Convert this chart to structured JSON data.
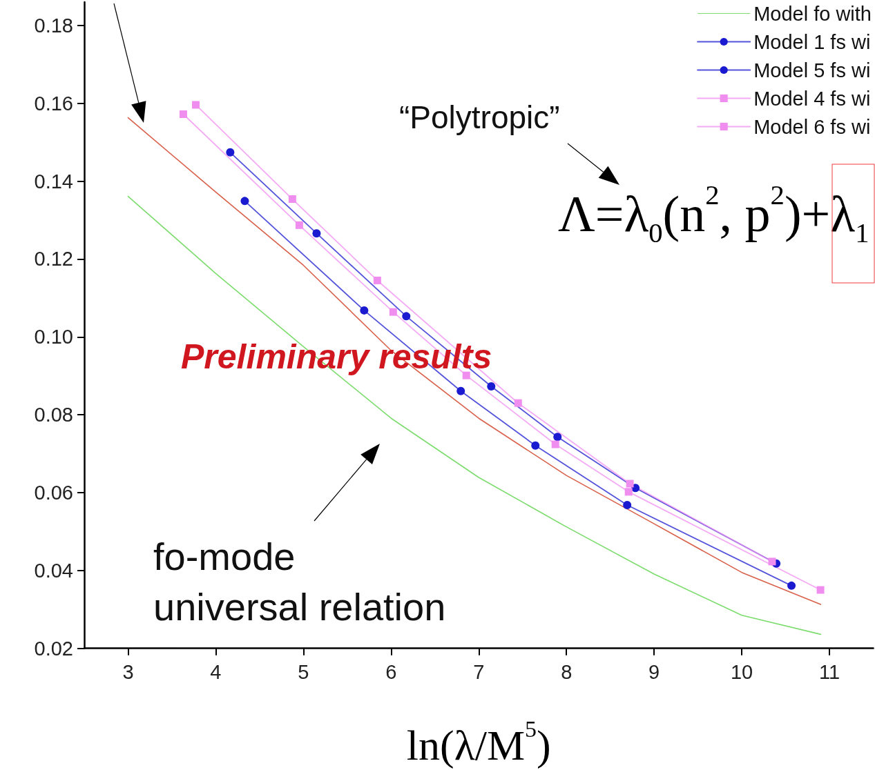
{
  "chart_data": {
    "type": "line",
    "xlabel": "ln(λ/M$^{5}$)",
    "xlim": [
      2.5,
      11.5
    ],
    "xticks": [
      3,
      4,
      5,
      6,
      7,
      8,
      9,
      10,
      11
    ],
    "ylim": [
      0.02,
      0.186
    ],
    "yticks": [
      {
        "value": 0.02,
        "label": "0.02"
      },
      {
        "value": 0.04,
        "label": "0.04"
      },
      {
        "value": 0.06,
        "label": "0.06"
      },
      {
        "value": 0.08,
        "label": "0.08"
      },
      {
        "value": 0.1,
        "label": "0.10"
      },
      {
        "value": 0.12,
        "label": "0.12"
      },
      {
        "value": 0.14,
        "label": "0.14"
      },
      {
        "value": 0.16,
        "label": "0.16"
      },
      {
        "value": 0.18,
        "label": "0.18"
      }
    ],
    "grid": false,
    "legend": "top right",
    "series": [
      {
        "color": "#d9604a",
        "marker": "none",
        "x": [
          3,
          4,
          5,
          6,
          7,
          8,
          9,
          10,
          10.9
        ],
        "values": [
          0.1563,
          0.1372,
          0.1184,
          0.0965,
          0.0791,
          0.0644,
          0.052,
          0.0395,
          0.0313
        ]
      },
      {
        "name": "Model fo with",
        "color": "#7ddc6e",
        "marker": "none",
        "x": [
          3,
          4,
          5,
          6,
          7,
          8,
          9,
          10,
          10.9
        ],
        "values": [
          0.1361,
          0.1163,
          0.0975,
          0.0791,
          0.0639,
          0.0512,
          0.0391,
          0.0285,
          0.0236
        ]
      },
      {
        "name": "Model 1 fs wi",
        "color": "#1a1ad0",
        "marker": "circle",
        "x": [
          4.165,
          5.15,
          6.173,
          7.142,
          7.898,
          8.787,
          10.394
        ],
        "values": [
          0.1474,
          0.1266,
          0.1053,
          0.0873,
          0.0743,
          0.0612,
          0.0418
        ]
      },
      {
        "name": "Model 5 fs wi",
        "color": "#1a1ad0",
        "marker": "circle",
        "x": [
          4.331,
          5.693,
          6.795,
          7.646,
          8.693,
          10.567
        ],
        "values": [
          0.1349,
          0.1068,
          0.0861,
          0.0721,
          0.0568,
          0.0361
        ]
      },
      {
        "name": "Model 4 fs wi",
        "color": "#f08ef0",
        "marker": "square",
        "x": [
          3.772,
          4.874,
          5.843,
          7.449,
          8.724,
          10.346
        ],
        "values": [
          0.1596,
          0.1354,
          0.1145,
          0.083,
          0.0623,
          0.0423
        ]
      },
      {
        "name": "Model 6 fs wi",
        "color": "#f08ef0",
        "marker": "square",
        "x": [
          3.63,
          4.953,
          6.024,
          6.858,
          7.874,
          8.709,
          10.898
        ],
        "values": [
          0.1572,
          0.1287,
          0.1064,
          0.0901,
          0.0724,
          0.0602,
          0.035
        ]
      }
    ],
    "annotations": [
      "“Polytropic”",
      "Λ=λ$_{0}$(n$^{2}$, p$^{2}$)+λ$_{1}$",
      "Preliminary results",
      "fo-mode\nuniversal relation"
    ]
  }
}
